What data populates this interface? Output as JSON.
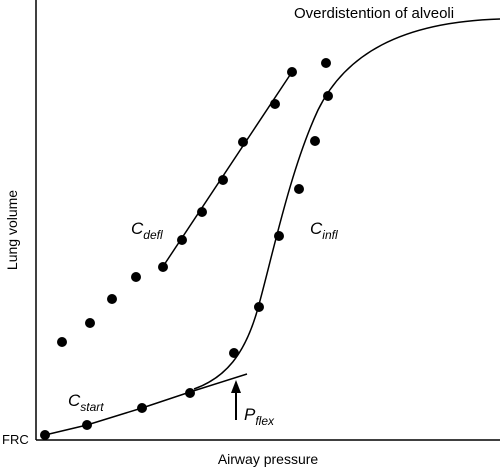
{
  "labels": {
    "overdistention": "Overdistention of alveoli",
    "c_defl_main": "C",
    "c_defl_sub": "defl",
    "c_infl_main": "C",
    "c_infl_sub": "infl",
    "c_start_main": "C",
    "c_start_sub": "start",
    "p_flex_main": "P",
    "p_flex_sub": "flex",
    "frc": "FRC",
    "y_axis": "Lung volume",
    "x_axis": "Airway pressure"
  }
}
